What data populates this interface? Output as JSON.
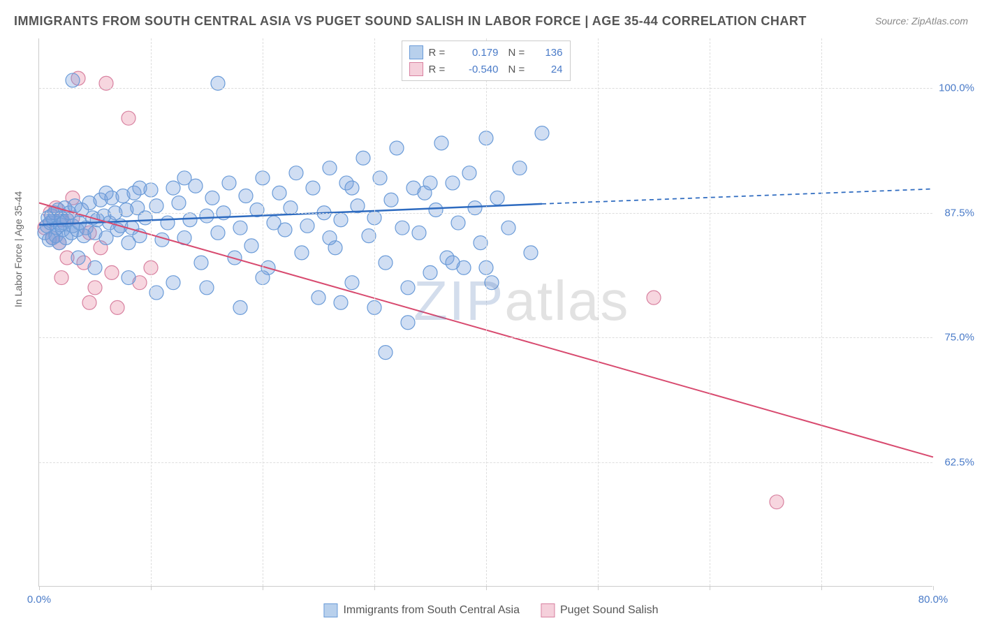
{
  "title": "IMMIGRANTS FROM SOUTH CENTRAL ASIA VS PUGET SOUND SALISH IN LABOR FORCE | AGE 35-44 CORRELATION CHART",
  "source": "Source: ZipAtlas.com",
  "ylabel": "In Labor Force | Age 35-44",
  "watermark_z": "ZIP",
  "watermark_rest": "atlas",
  "chart": {
    "type": "scatter",
    "xlim": [
      0,
      80
    ],
    "ylim": [
      50,
      105
    ],
    "xticks": [
      0,
      10,
      20,
      30,
      40,
      50,
      60,
      70,
      80
    ],
    "xtick_labels": {
      "0": "0.0%",
      "80": "80.0%"
    },
    "yticks": [
      62.5,
      75.0,
      87.5,
      100.0
    ],
    "ytick_labels": [
      "62.5%",
      "75.0%",
      "87.5%",
      "100.0%"
    ],
    "background_color": "#ffffff",
    "grid_color": "#dddddd",
    "axis_color": "#cccccc"
  },
  "series": [
    {
      "name": "Immigrants from South Central Asia",
      "color_fill": "rgba(120,160,220,0.35)",
      "color_stroke": "#6a9bd8",
      "swatch_fill": "#b8d0ec",
      "swatch_border": "#6a9bd8",
      "r": "0.179",
      "n": "136",
      "marker_radius": 10,
      "regression": {
        "x1": 0,
        "y1": 86.3,
        "x2": 45,
        "y2": 88.4,
        "x2_dash": 80,
        "y2_dash": 89.9,
        "color": "#2e6bc0",
        "width": 2.5
      },
      "points": [
        [
          0.5,
          85.5
        ],
        [
          0.7,
          86.2
        ],
        [
          0.8,
          87.0
        ],
        [
          0.9,
          84.8
        ],
        [
          1.0,
          86.5
        ],
        [
          1.1,
          87.2
        ],
        [
          1.2,
          85.0
        ],
        [
          1.3,
          86.8
        ],
        [
          1.4,
          87.5
        ],
        [
          1.5,
          85.2
        ],
        [
          1.6,
          86.0
        ],
        [
          1.7,
          87.8
        ],
        [
          1.8,
          84.5
        ],
        [
          1.9,
          86.3
        ],
        [
          2.0,
          87.0
        ],
        [
          2.1,
          85.8
        ],
        [
          2.2,
          86.5
        ],
        [
          2.3,
          88.0
        ],
        [
          2.4,
          85.0
        ],
        [
          2.5,
          86.8
        ],
        [
          2.7,
          87.5
        ],
        [
          2.9,
          85.5
        ],
        [
          3.0,
          86.2
        ],
        [
          3.2,
          88.2
        ],
        [
          3.4,
          85.8
        ],
        [
          3.6,
          86.5
        ],
        [
          3.8,
          87.8
        ],
        [
          4.0,
          85.2
        ],
        [
          4.2,
          86.0
        ],
        [
          4.5,
          88.5
        ],
        [
          4.8,
          87.0
        ],
        [
          5.0,
          85.5
        ],
        [
          5.2,
          86.8
        ],
        [
          5.5,
          88.8
        ],
        [
          5.8,
          87.2
        ],
        [
          6.0,
          85.0
        ],
        [
          6.3,
          86.5
        ],
        [
          6.5,
          89.0
        ],
        [
          6.8,
          87.5
        ],
        [
          7.0,
          85.8
        ],
        [
          7.3,
          86.2
        ],
        [
          7.5,
          89.2
        ],
        [
          7.8,
          87.8
        ],
        [
          8.0,
          84.5
        ],
        [
          8.3,
          86.0
        ],
        [
          8.5,
          89.5
        ],
        [
          8.8,
          88.0
        ],
        [
          9.0,
          85.2
        ],
        [
          9.5,
          87.0
        ],
        [
          10.0,
          89.8
        ],
        [
          10.5,
          88.2
        ],
        [
          11.0,
          84.8
        ],
        [
          11.5,
          86.5
        ],
        [
          12.0,
          90.0
        ],
        [
          12.5,
          88.5
        ],
        [
          13.0,
          85.0
        ],
        [
          13.5,
          86.8
        ],
        [
          14.0,
          90.2
        ],
        [
          14.5,
          82.5
        ],
        [
          15.0,
          87.2
        ],
        [
          15.5,
          89.0
        ],
        [
          16.0,
          85.5
        ],
        [
          16.5,
          87.5
        ],
        [
          17.0,
          90.5
        ],
        [
          17.5,
          83.0
        ],
        [
          18.0,
          86.0
        ],
        [
          18.5,
          89.2
        ],
        [
          19.0,
          84.2
        ],
        [
          19.5,
          87.8
        ],
        [
          20.0,
          91.0
        ],
        [
          20.5,
          82.0
        ],
        [
          21.0,
          86.5
        ],
        [
          21.5,
          89.5
        ],
        [
          22.0,
          85.8
        ],
        [
          22.5,
          88.0
        ],
        [
          23.0,
          91.5
        ],
        [
          23.5,
          83.5
        ],
        [
          24.0,
          86.2
        ],
        [
          24.5,
          90.0
        ],
        [
          25.0,
          79.0
        ],
        [
          25.5,
          87.5
        ],
        [
          26.0,
          92.0
        ],
        [
          26.5,
          84.0
        ],
        [
          27.0,
          86.8
        ],
        [
          27.5,
          90.5
        ],
        [
          28.0,
          80.5
        ],
        [
          28.5,
          88.2
        ],
        [
          29.0,
          93.0
        ],
        [
          29.5,
          85.2
        ],
        [
          30.0,
          87.0
        ],
        [
          30.5,
          91.0
        ],
        [
          31.0,
          82.5
        ],
        [
          31.5,
          88.8
        ],
        [
          32.0,
          94.0
        ],
        [
          32.5,
          86.0
        ],
        [
          33.0,
          80.0
        ],
        [
          33.5,
          90.0
        ],
        [
          34.0,
          85.5
        ],
        [
          34.5,
          89.5
        ],
        [
          35.0,
          81.5
        ],
        [
          35.5,
          87.8
        ],
        [
          36.0,
          94.5
        ],
        [
          36.5,
          83.0
        ],
        [
          37.0,
          90.5
        ],
        [
          37.5,
          86.5
        ],
        [
          38.0,
          82.0
        ],
        [
          38.5,
          91.5
        ],
        [
          39.0,
          88.0
        ],
        [
          39.5,
          84.5
        ],
        [
          40.0,
          95.0
        ],
        [
          40.5,
          80.5
        ],
        [
          41.0,
          89.0
        ],
        [
          42.0,
          86.0
        ],
        [
          43.0,
          92.0
        ],
        [
          44.0,
          83.5
        ],
        [
          45.0,
          95.5
        ],
        [
          31.0,
          73.5
        ],
        [
          15.0,
          80.0
        ],
        [
          16.0,
          100.5
        ],
        [
          3.0,
          100.8
        ],
        [
          3.5,
          83.0
        ],
        [
          5.0,
          82.0
        ],
        [
          8.0,
          81.0
        ],
        [
          10.5,
          79.5
        ],
        [
          12.0,
          80.5
        ],
        [
          18.0,
          78.0
        ],
        [
          20.0,
          81.0
        ],
        [
          27.0,
          78.5
        ],
        [
          30.0,
          78.0
        ],
        [
          33.0,
          76.5
        ],
        [
          6.0,
          89.5
        ],
        [
          9.0,
          90.0
        ],
        [
          13.0,
          91.0
        ],
        [
          26.0,
          85.0
        ],
        [
          28.0,
          90.0
        ],
        [
          35.0,
          90.5
        ],
        [
          37.0,
          82.5
        ],
        [
          40.0,
          82.0
        ]
      ]
    },
    {
      "name": "Puget Sound Salish",
      "color_fill": "rgba(230,120,150,0.30)",
      "color_stroke": "#d881a0",
      "swatch_fill": "#f5d0db",
      "swatch_border": "#d881a0",
      "r": "-0.540",
      "n": "24",
      "marker_radius": 10,
      "regression": {
        "x1": 0,
        "y1": 88.5,
        "x2": 80,
        "y2": 63.0,
        "color": "#d84a6f",
        "width": 2
      },
      "points": [
        [
          0.5,
          86.0
        ],
        [
          1.0,
          87.5
        ],
        [
          1.2,
          85.0
        ],
        [
          1.5,
          88.0
        ],
        [
          1.8,
          84.5
        ],
        [
          2.0,
          86.8
        ],
        [
          2.5,
          83.0
        ],
        [
          3.0,
          87.0
        ],
        [
          3.5,
          101.0
        ],
        [
          4.0,
          82.5
        ],
        [
          4.5,
          85.5
        ],
        [
          5.0,
          80.0
        ],
        [
          5.5,
          84.0
        ],
        [
          6.0,
          100.5
        ],
        [
          6.5,
          81.5
        ],
        [
          7.0,
          78.0
        ],
        [
          8.0,
          97.0
        ],
        [
          9.0,
          80.5
        ],
        [
          10.0,
          82.0
        ],
        [
          4.5,
          78.5
        ],
        [
          2.0,
          81.0
        ],
        [
          55.0,
          79.0
        ],
        [
          66.0,
          58.5
        ],
        [
          3.0,
          89.0
        ]
      ]
    }
  ],
  "legend_bottom": [
    {
      "label": "Immigrants from South Central Asia",
      "swatch_fill": "#b8d0ec",
      "swatch_border": "#6a9bd8"
    },
    {
      "label": "Puget Sound Salish",
      "swatch_fill": "#f5d0db",
      "swatch_border": "#d881a0"
    }
  ]
}
